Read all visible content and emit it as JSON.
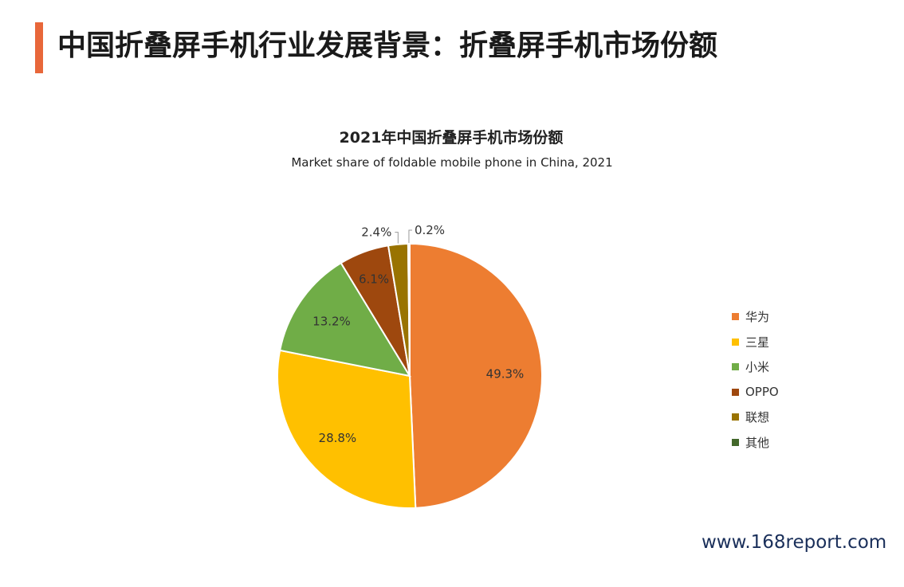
{
  "page": {
    "title": "中国折叠屏手机行业发展背景：折叠屏手机市场份额",
    "watermark": "www.168report.com"
  },
  "colors": {
    "accent": "#e8673a"
  },
  "chart_data": {
    "type": "pie",
    "title": "2021年中国折叠屏手机市场份额",
    "subtitle": "Market share of foldable mobile phone in China, 2021",
    "legend_position": "right",
    "slices": [
      {
        "label": "华为",
        "value": 49.3,
        "display": "49.3%",
        "color": "#ed7d31"
      },
      {
        "label": "三星",
        "value": 28.8,
        "display": "28.8%",
        "color": "#ffc000"
      },
      {
        "label": "小米",
        "value": 13.2,
        "display": "13.2%",
        "color": "#70ad47"
      },
      {
        "label": "OPPO",
        "value": 6.1,
        "display": "6.1%",
        "color": "#9e480e"
      },
      {
        "label": "联想",
        "value": 2.4,
        "display": "2.4%",
        "color": "#997300"
      },
      {
        "label": "其他",
        "value": 0.2,
        "display": "0.2%",
        "color": "#43682b"
      }
    ]
  }
}
